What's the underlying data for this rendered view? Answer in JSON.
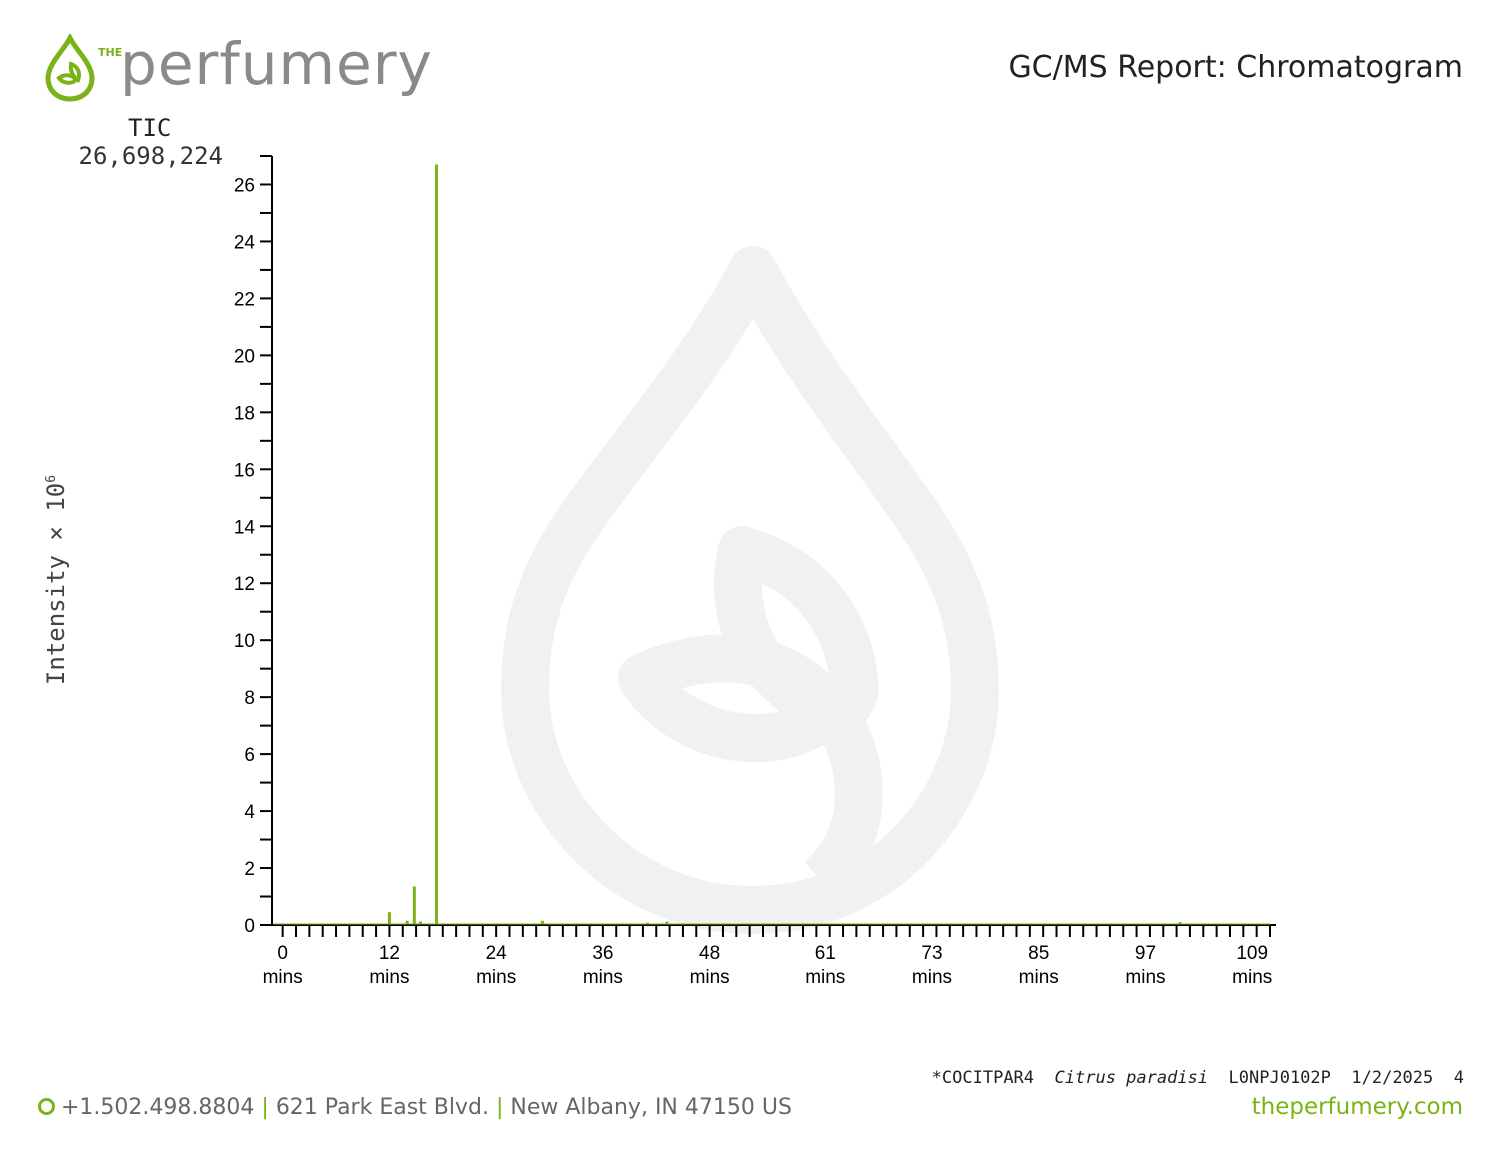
{
  "header": {
    "logo_the": "THE",
    "logo_word": "perfumery",
    "report_title": "GC/MS Report: Chromatogram"
  },
  "tic": {
    "label": "TIC",
    "value": "26,698,224"
  },
  "colors": {
    "accent": "#7ab317",
    "watermark": "#f1f1f1",
    "axis": "#000000",
    "text_gray": "#666666"
  },
  "chart_data": {
    "type": "line",
    "title": "",
    "xlabel": "",
    "ylabel": "Intensity × 10",
    "ylabel_exp": "6",
    "ylim": [
      0,
      27
    ],
    "xlim": [
      -1.2,
      111
    ],
    "grid": false,
    "y_ticks": [
      0,
      2,
      4,
      6,
      8,
      10,
      12,
      14,
      16,
      18,
      20,
      22,
      24,
      26
    ],
    "x_ticks": [
      {
        "value": 0,
        "label": "0"
      },
      {
        "value": 12,
        "label": "12"
      },
      {
        "value": 24,
        "label": "24"
      },
      {
        "value": 36,
        "label": "36"
      },
      {
        "value": 48,
        "label": "48"
      },
      {
        "value": 61,
        "label": "61"
      },
      {
        "value": 73,
        "label": "73"
      },
      {
        "value": 85,
        "label": "85"
      },
      {
        "value": 97,
        "label": "97"
      },
      {
        "value": 109,
        "label": "109"
      }
    ],
    "x_tick_unit": "mins",
    "peaks": [
      {
        "time": 12.0,
        "intensity": 0.45
      },
      {
        "time": 14.0,
        "intensity": 0.15
      },
      {
        "time": 14.8,
        "intensity": 1.35
      },
      {
        "time": 15.5,
        "intensity": 0.12
      },
      {
        "time": 17.3,
        "intensity": 26.7
      },
      {
        "time": 29.2,
        "intensity": 0.15
      },
      {
        "time": 41.0,
        "intensity": 0.08
      },
      {
        "time": 43.2,
        "intensity": 0.12
      },
      {
        "time": 100.9,
        "intensity": 0.1
      }
    ]
  },
  "footer": {
    "sample_code": "*COCITPAR4",
    "species": "Citrus paradisi",
    "lot": "L0NPJ0102P",
    "date": "1/2/2025",
    "page": "4",
    "phone": "+1.502.498.8804",
    "address": "621 Park East Blvd.",
    "city": "New Albany, IN 47150 US",
    "website": "theperfumery.com"
  }
}
